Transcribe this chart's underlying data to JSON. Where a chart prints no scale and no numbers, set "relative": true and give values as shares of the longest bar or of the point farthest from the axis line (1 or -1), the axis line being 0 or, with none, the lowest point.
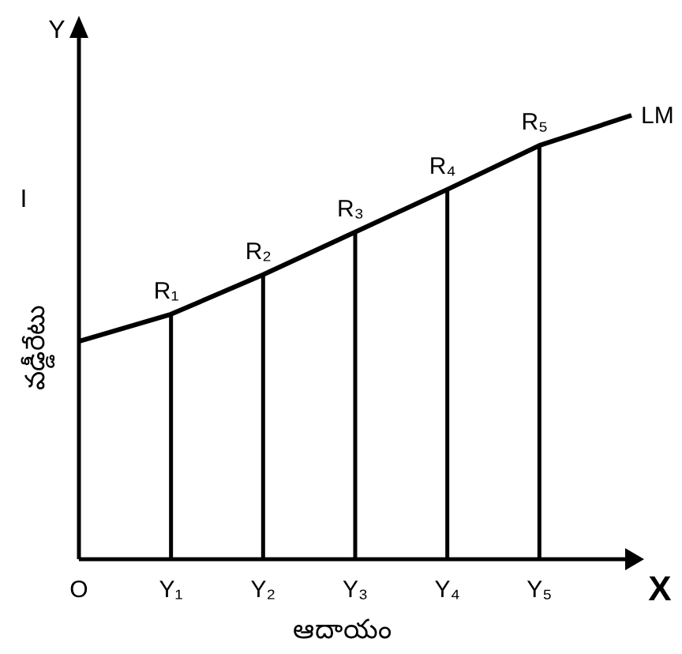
{
  "chart_data": {
    "type": "line",
    "relative": true,
    "xlabel": "ఆదాయం",
    "ylabel": "వడ్డీరేటు",
    "categories": [
      "O",
      "Y₁",
      "Y₂",
      "Y₃",
      "Y₄",
      "Y₅",
      null
    ],
    "series": [
      {
        "name": "LM",
        "color": "#000000",
        "values": [
          0.491,
          0.552,
          0.641,
          0.737,
          0.833,
          0.932,
          1
        ]
      },
      {
        "type": "bar",
        "color": "#000000",
        "values": [
          null,
          0.552,
          0.641,
          0.737,
          0.833,
          0.932,
          null
        ]
      }
    ],
    "annotations": [
      "Y",
      "X",
      "I",
      {
        "text": "R₁",
        "x": "Y₁",
        "y": 0.552
      },
      {
        "text": "R₂",
        "x": "Y₂",
        "y": 0.641
      },
      {
        "text": "R₃",
        "x": "Y₃",
        "y": 0.737
      },
      {
        "text": "R₄",
        "x": "Y₄",
        "y": 0.833
      },
      {
        "text": "R₅",
        "x": "Y₅",
        "y": 0.932
      }
    ],
    "marker": "none",
    "line_style": "solid"
  }
}
